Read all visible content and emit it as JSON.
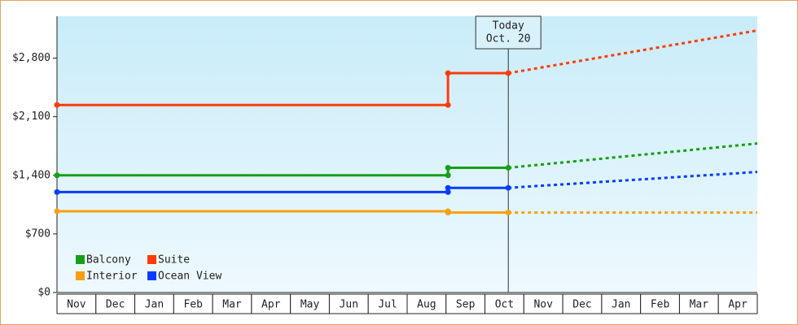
{
  "chart_data": {
    "type": "line",
    "categories": [
      "Nov",
      "Dec",
      "Jan",
      "Feb",
      "Mar",
      "Apr",
      "May",
      "Jun",
      "Jul",
      "Aug",
      "Sep",
      "Oct",
      "Nov",
      "Dec",
      "Jan",
      "Feb",
      "Mar",
      "Apr"
    ],
    "x": [
      0,
      10.05,
      10.05,
      11.6,
      18
    ],
    "xlim": [
      0,
      18
    ],
    "ylim": [
      0,
      3300
    ],
    "yticks": [
      {
        "value": 0,
        "label": "$0"
      },
      {
        "value": 700,
        "label": "$700"
      },
      {
        "value": 1400,
        "label": "$1,400"
      },
      {
        "value": 2100,
        "label": "$2,100"
      },
      {
        "value": 2800,
        "label": "$2,800"
      }
    ],
    "today": {
      "label": [
        "Today",
        "Oct. 20"
      ],
      "x": 11.6
    },
    "series": [
      {
        "name": "Balcony",
        "color": "#16a016",
        "values": [
          1400,
          1400,
          1490,
          1490,
          1780
        ]
      },
      {
        "name": "Suite",
        "color": "#ff3a0a",
        "values": [
          2240,
          2240,
          2620,
          2620,
          3130
        ]
      },
      {
        "name": "Interior",
        "color": "#f5a012",
        "values": [
          970,
          970,
          955,
          955,
          955
        ]
      },
      {
        "name": "Ocean View",
        "color": "#0a3cff",
        "values": [
          1200,
          1200,
          1250,
          1250,
          1440
        ]
      }
    ]
  }
}
